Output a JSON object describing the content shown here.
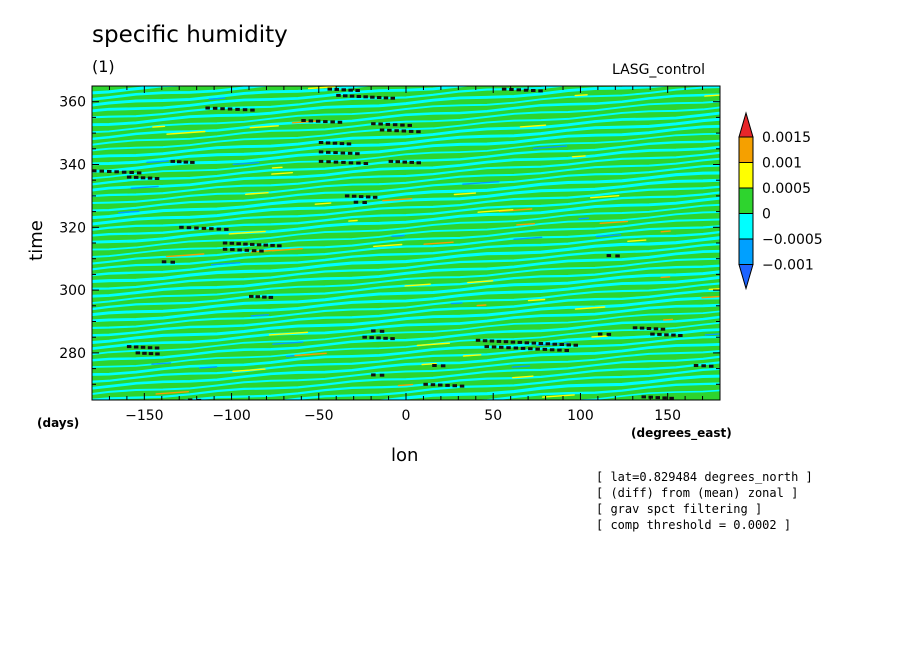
{
  "chart_data": {
    "type": "heatmap",
    "title": "specific humidity",
    "subtitle": "(1)",
    "source_label": "LASG_control",
    "xlabel": "lon",
    "x_unit": "(degrees_east)",
    "ylabel": "time",
    "y_unit": "(days)",
    "xlim": [
      -180,
      180
    ],
    "ylim": [
      265,
      365
    ],
    "x_ticks": [
      -150,
      -100,
      -50,
      0,
      50,
      100,
      150
    ],
    "y_ticks": [
      280,
      300,
      320,
      340,
      360
    ],
    "colorbar": {
      "labels": [
        "0.0015",
        "0.001",
        "0.0005",
        "0",
        "−0.0005",
        "−0.001"
      ],
      "bins": [
        {
          "range": [
            0.0015,
            null
          ],
          "color": "#e8262a"
        },
        {
          "range": [
            0.001,
            0.0015
          ],
          "color": "#f5a000"
        },
        {
          "range": [
            0.0005,
            0.001
          ],
          "color": "#ffff00"
        },
        {
          "range": [
            0,
            0.0005
          ],
          "color": "#2ed42e"
        },
        {
          "range": [
            -0.0005,
            0
          ],
          "color": "#00ffff"
        },
        {
          "range": [
            -0.001,
            -0.0005
          ],
          "color": "#00a0ff"
        },
        {
          "range": [
            null,
            -0.001
          ],
          "color": "#1e64ff"
        }
      ]
    },
    "threshold_clusters": [
      {
        "lon_start": -180,
        "lon_end": -150,
        "time": 338
      },
      {
        "lon_start": -160,
        "lon_end": -140,
        "time": 336
      },
      {
        "lon_start": -135,
        "lon_end": -120,
        "time": 341
      },
      {
        "lon_start": -115,
        "lon_end": -85,
        "time": 358
      },
      {
        "lon_start": -60,
        "lon_end": -35,
        "time": 354
      },
      {
        "lon_start": -50,
        "lon_end": -30,
        "time": 347
      },
      {
        "lon_start": -50,
        "lon_end": -25,
        "time": 344
      },
      {
        "lon_start": -50,
        "lon_end": -20,
        "time": 341
      },
      {
        "lon_start": -35,
        "lon_end": -15,
        "time": 330
      },
      {
        "lon_start": -30,
        "lon_end": -20,
        "time": 328
      },
      {
        "lon_start": -15,
        "lon_end": 10,
        "time": 351
      },
      {
        "lon_start": -20,
        "lon_end": 5,
        "time": 353
      },
      {
        "lon_start": -10,
        "lon_end": 10,
        "time": 341
      },
      {
        "lon_start": -45,
        "lon_end": -25,
        "time": 364
      },
      {
        "lon_start": -40,
        "lon_end": -5,
        "time": 362
      },
      {
        "lon_start": 55,
        "lon_end": 80,
        "time": 364
      },
      {
        "lon_start": -130,
        "lon_end": -100,
        "time": 320
      },
      {
        "lon_start": -105,
        "lon_end": -70,
        "time": 315
      },
      {
        "lon_start": -105,
        "lon_end": -80,
        "time": 313
      },
      {
        "lon_start": -140,
        "lon_end": -130,
        "time": 309
      },
      {
        "lon_start": -90,
        "lon_end": -75,
        "time": 298
      },
      {
        "lon_start": -160,
        "lon_end": -140,
        "time": 282
      },
      {
        "lon_start": -155,
        "lon_end": -140,
        "time": 280
      },
      {
        "lon_start": -25,
        "lon_end": -5,
        "time": 285
      },
      {
        "lon_start": -20,
        "lon_end": -10,
        "time": 287
      },
      {
        "lon_start": 40,
        "lon_end": 100,
        "time": 284
      },
      {
        "lon_start": 45,
        "lon_end": 95,
        "time": 282
      },
      {
        "lon_start": 130,
        "lon_end": 150,
        "time": 288
      },
      {
        "lon_start": 140,
        "lon_end": 160,
        "time": 286
      },
      {
        "lon_start": 110,
        "lon_end": 120,
        "time": 286
      },
      {
        "lon_start": 115,
        "lon_end": 125,
        "time": 311
      },
      {
        "lon_start": 165,
        "lon_end": 178,
        "time": 276
      },
      {
        "lon_start": 10,
        "lon_end": 35,
        "time": 270
      },
      {
        "lon_start": 15,
        "lon_end": 25,
        "time": 276
      },
      {
        "lon_start": -20,
        "lon_end": -10,
        "time": 273
      },
      {
        "lon_start": 135,
        "lon_end": 155,
        "time": 266
      },
      {
        "lon_start": -125,
        "lon_end": -115,
        "time": 265
      }
    ],
    "notes": [
      "[ lat=0.829484 degrees_north ]",
      "[ (diff) from (mean) zonal ]",
      "[ grav spct filtering ]",
      "[ comp threshold = 0.0002 ]"
    ]
  }
}
